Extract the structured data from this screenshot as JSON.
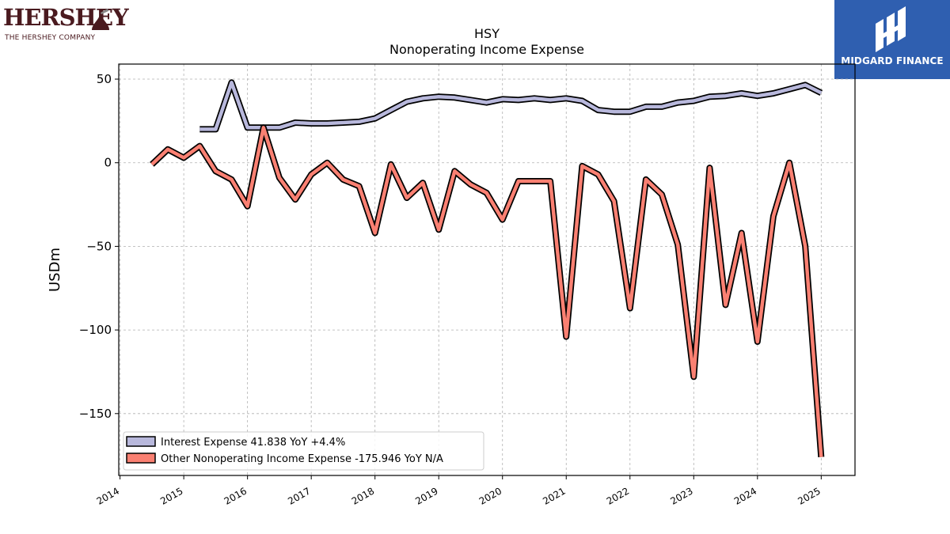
{
  "header": {
    "brand_name": "HERSHEY",
    "brand_subtitle": "THE HERSHEY COMPANY",
    "partner_name": "MIDGARD FINANCE"
  },
  "colors": {
    "series_interest": "#b8b8dc",
    "series_other": "#fa8072",
    "outline": "#000000",
    "grid": "#b0b0b0",
    "partner_bg": "#2f5fb0",
    "brand": "#4a1a1f"
  },
  "chart_data": {
    "type": "line",
    "title": "HSY",
    "subtitle": "Nonoperating Income Expense",
    "xlabel": "",
    "ylabel": "USDm",
    "xlim": [
      2013.98,
      2025.53
    ],
    "ylim": [
      -187,
      59
    ],
    "x_ticks": [
      "2014",
      "2015",
      "2016",
      "2017",
      "2018",
      "2019",
      "2020",
      "2021",
      "2022",
      "2023",
      "2024",
      "2025"
    ],
    "y_ticks": [
      50,
      0,
      -50,
      -100,
      -150
    ],
    "y_tick_labels": [
      "50",
      "0",
      "−50",
      "−100",
      "−150"
    ],
    "grid": true,
    "legend_position": "bottom-left",
    "series": [
      {
        "name": "Interest Expense",
        "legend_label": "Interest Expense  41.838 YoY +4.4%",
        "x": [
          2015.25,
          2015.5,
          2015.75,
          2016.0,
          2016.25,
          2016.5,
          2016.75,
          2017.0,
          2017.25,
          2017.5,
          2017.75,
          2018.0,
          2018.25,
          2018.5,
          2018.75,
          2019.0,
          2019.25,
          2019.5,
          2019.75,
          2020.0,
          2020.25,
          2020.5,
          2020.75,
          2021.0,
          2021.25,
          2021.5,
          2021.75,
          2022.0,
          2022.25,
          2022.5,
          2022.75,
          2023.0,
          2023.25,
          2023.5,
          2023.75,
          2024.0,
          2024.25,
          2024.5,
          2024.75,
          2025.0
        ],
        "y": [
          20,
          20,
          48,
          21,
          21,
          21,
          24,
          23.5,
          23.5,
          24,
          24.5,
          26.5,
          31.5,
          36.5,
          38.5,
          39.5,
          39,
          37.5,
          36,
          38,
          37.5,
          38.5,
          37.5,
          38.5,
          37,
          31.5,
          30.5,
          30.5,
          33.5,
          33.5,
          36,
          37,
          39.5,
          40,
          41.5,
          40,
          41.5,
          44,
          46.5,
          41.8
        ]
      },
      {
        "name": "Other Nonoperating Income Expense",
        "legend_label": "Other Nonoperating Income Expense  -175.946 YoY N/A",
        "x": [
          2014.5,
          2014.75,
          2015.0,
          2015.25,
          2015.5,
          2015.75,
          2016.0,
          2016.25,
          2016.5,
          2016.75,
          2017.0,
          2017.25,
          2017.5,
          2017.75,
          2018.0,
          2018.25,
          2018.5,
          2018.75,
          2019.0,
          2019.25,
          2019.5,
          2019.75,
          2020.0,
          2020.25,
          2020.5,
          2020.75,
          2021.0,
          2021.25,
          2021.5,
          2021.75,
          2022.0,
          2022.25,
          2022.5,
          2022.75,
          2023.0,
          2023.25,
          2023.5,
          2023.75,
          2024.0,
          2024.25,
          2024.5,
          2024.75,
          2025.0
        ],
        "y": [
          -1,
          8,
          3,
          10,
          -5,
          -10,
          -26,
          21,
          -9,
          -22,
          -7,
          0,
          -10,
          -14,
          -42,
          -1,
          -21,
          -12,
          -40,
          -5,
          -13,
          -18,
          -34,
          -11,
          -11,
          -11,
          -104,
          -2,
          -7,
          -23,
          -87,
          -10,
          -19,
          -49,
          -128,
          -3,
          -85,
          -42,
          -107,
          -32,
          0,
          -50,
          -176
        ]
      }
    ]
  }
}
